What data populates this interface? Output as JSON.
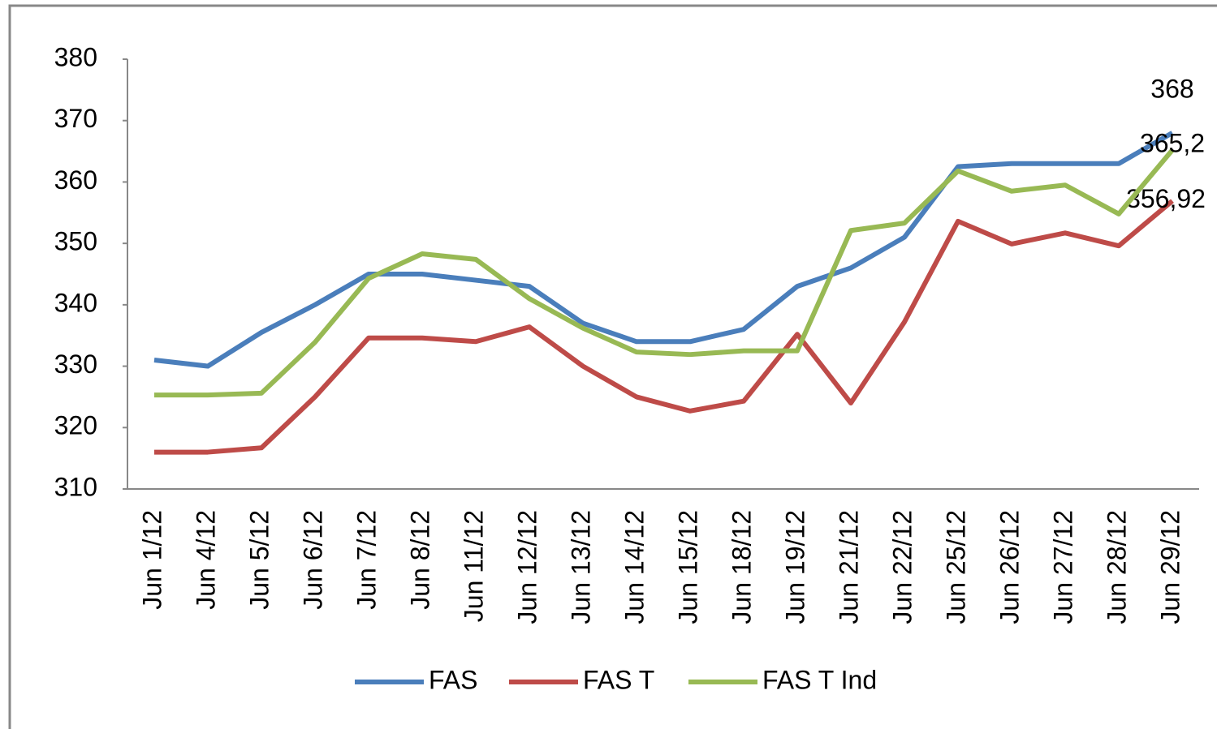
{
  "chart_data": {
    "type": "line",
    "categories": [
      "Jun 1/12",
      "Jun 4/12",
      "Jun 5/12",
      "Jun 6/12",
      "Jun 7/12",
      "Jun 8/12",
      "Jun 11/12",
      "Jun 12/12",
      "Jun 13/12",
      "Jun 14/12",
      "Jun 15/12",
      "Jun 18/12",
      "Jun 19/12",
      "Jun 21/12",
      "Jun 22/12",
      "Jun 25/12",
      "Jun 26/12",
      "Jun 27/12",
      "Jun 28/12",
      "Jun 29/12"
    ],
    "series": [
      {
        "name": "FAS",
        "color": "#4a7ebb",
        "values": [
          331,
          330,
          335.5,
          340,
          345,
          345,
          344,
          343,
          337,
          334,
          334,
          336,
          343,
          346,
          351,
          362.5,
          363,
          363,
          363,
          368
        ],
        "value_labels": [
          null,
          null,
          null,
          null,
          null,
          null,
          null,
          null,
          null,
          null,
          null,
          null,
          null,
          null,
          null,
          null,
          null,
          null,
          null,
          "368"
        ]
      },
      {
        "name": "FAS T",
        "color": "#be4b48",
        "values": [
          316,
          316,
          316.7,
          325,
          334.6,
          334.6,
          334,
          336.4,
          330,
          325,
          322.7,
          324.3,
          335.2,
          324,
          337.2,
          353.6,
          349.9,
          351.7,
          349.6,
          356.92
        ],
        "value_labels": [
          null,
          null,
          null,
          null,
          null,
          null,
          null,
          null,
          null,
          null,
          null,
          null,
          null,
          null,
          null,
          null,
          null,
          null,
          null,
          "356,92"
        ]
      },
      {
        "name": "FAS T Ind",
        "color": "#98b954",
        "values": [
          325.3,
          325.3,
          325.6,
          333.9,
          344.3,
          348.3,
          347.4,
          341,
          336.2,
          332.3,
          331.9,
          332.5,
          332.5,
          352.1,
          353.3,
          361.8,
          358.5,
          359.5,
          354.8,
          365.2
        ],
        "value_labels": [
          null,
          null,
          null,
          null,
          null,
          null,
          null,
          null,
          null,
          null,
          null,
          null,
          null,
          null,
          null,
          null,
          null,
          null,
          null,
          "365,2"
        ]
      }
    ],
    "ylim": [
      310,
      380
    ],
    "yticks": [
      310,
      320,
      330,
      340,
      350,
      360,
      370,
      380
    ],
    "grid": false
  }
}
